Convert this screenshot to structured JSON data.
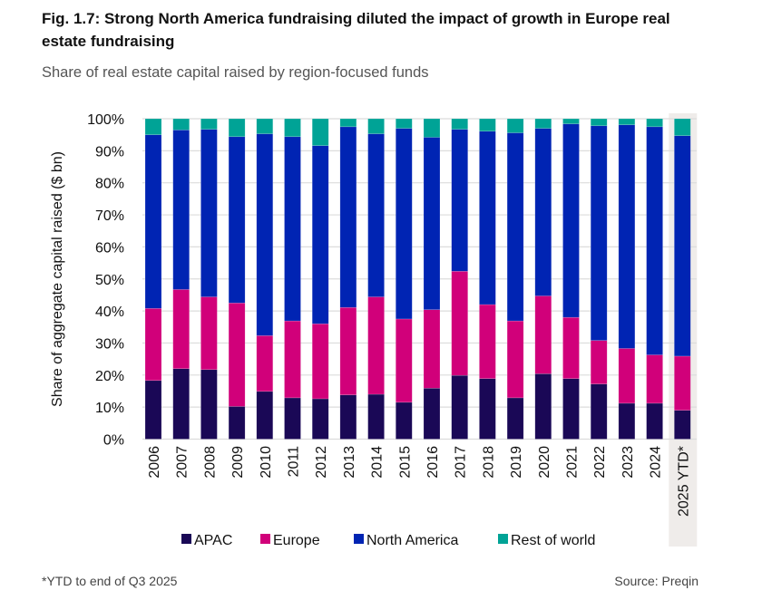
{
  "chart_data": {
    "type": "bar",
    "stacked": true,
    "title": "Fig. 1.7: Strong North America fundraising diluted the impact of growth in Europe real estate fundraising",
    "subtitle": "Share of real estate capital raised by region-focused funds",
    "ylabel": "Share of aggregate capital raised ($ bn)",
    "xlabel": "",
    "ylim": [
      0,
      100
    ],
    "yticks": [
      "0%",
      "10%",
      "20%",
      "30%",
      "40%",
      "50%",
      "60%",
      "70%",
      "80%",
      "90%",
      "100%"
    ],
    "grid": true,
    "legend_placement": "bottom",
    "highlighted_category": "2025 YTD*",
    "categories": [
      "2006",
      "2007",
      "2008",
      "2009",
      "2010",
      "2011",
      "2012",
      "2013",
      "2014",
      "2015",
      "2016",
      "2017",
      "2018",
      "2019",
      "2020",
      "2021",
      "2022",
      "2023",
      "2024",
      "2025 YTD*"
    ],
    "series": [
      {
        "name": "APAC",
        "color": "#1a0856",
        "values": [
          18.3,
          22.0,
          21.7,
          10.2,
          14.9,
          12.9,
          12.6,
          13.8,
          14.0,
          11.5,
          15.9,
          19.9,
          18.9,
          12.9,
          20.4,
          18.9,
          17.2,
          11.2,
          11.2,
          9.0
        ]
      },
      {
        "name": "Europe",
        "color": "#d1007a",
        "values": [
          22.5,
          24.7,
          22.7,
          32.3,
          17.4,
          24.0,
          23.4,
          27.3,
          30.4,
          26.0,
          24.5,
          32.5,
          23.1,
          24.0,
          24.3,
          19.1,
          13.6,
          17.1,
          15.1,
          16.9
        ]
      },
      {
        "name": "North America",
        "color": "#0024b3",
        "values": [
          54.2,
          49.8,
          52.3,
          51.9,
          63.0,
          57.5,
          55.6,
          56.4,
          50.9,
          59.5,
          53.8,
          44.3,
          54.1,
          58.7,
          52.3,
          60.4,
          67.0,
          69.8,
          71.2,
          68.8
        ]
      },
      {
        "name": "Rest of world",
        "color": "#00a396",
        "values": [
          5.0,
          3.5,
          3.3,
          5.6,
          4.7,
          5.6,
          8.4,
          2.5,
          4.7,
          3.0,
          5.8,
          3.3,
          3.9,
          4.4,
          3.0,
          1.6,
          2.2,
          1.9,
          2.5,
          5.3
        ]
      }
    ]
  },
  "footer": {
    "note": "*YTD to end of Q3 2025",
    "source": "Source: Preqin"
  }
}
